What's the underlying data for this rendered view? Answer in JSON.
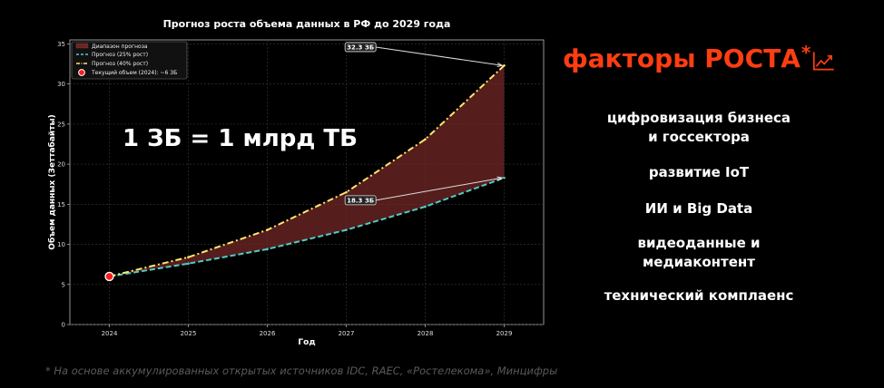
{
  "chart_data": {
    "type": "line",
    "title": "Прогноз роста объема данных в РФ до 2029 года",
    "xlabel": "Год",
    "ylabel": "Объем данных (Зеттабайты)",
    "x": [
      2024,
      2025,
      2026,
      2027,
      2028,
      2029
    ],
    "xlim": [
      2023.5,
      2029.5
    ],
    "ylim": [
      0,
      35.5
    ],
    "yticks": [
      0,
      5,
      10,
      15,
      20,
      25,
      30,
      35
    ],
    "grid": true,
    "legend_position": "top-left",
    "series": [
      {
        "name": "Прогноз (25% рост)",
        "values": [
          6.0,
          7.6,
          9.4,
          11.8,
          14.7,
          18.3
        ],
        "color": "#4ecdc4",
        "style": "dashed"
      },
      {
        "name": "Прогноз (40% рост)",
        "values": [
          6.0,
          8.4,
          11.8,
          16.5,
          23.1,
          32.3
        ],
        "color": "#ffe66d",
        "style": "dashdot"
      }
    ],
    "band": {
      "name": "Диапазон прогноза",
      "color": "#7a2a2a"
    },
    "current_point": {
      "name": "Текущий объем (2024): ~6 ЗБ",
      "x": 2024,
      "y": 6.0,
      "color": "#ff1a1a"
    },
    "annotations": [
      {
        "text": "32.3 ЗБ",
        "x": 2029,
        "y": 32.3,
        "text_x": 2027.18,
        "text_y": 34.6
      },
      {
        "text": "18.3 ЗБ",
        "x": 2029,
        "y": 18.3,
        "text_x": 2027.18,
        "text_y": 15.5
      }
    ]
  },
  "big_note": "1 ЗБ = 1 млрд ТБ",
  "factors": {
    "title": "факторы РОСТА",
    "title_asterisk": "*",
    "icon": "line-chart-icon",
    "accent_color": "#ff3d12",
    "items": [
      {
        "lines": [
          "цифровизация бизнеса",
          "и госсектора"
        ]
      },
      {
        "lines": [
          "развитие IoT"
        ]
      },
      {
        "lines": [
          "ИИ и Big Data"
        ]
      },
      {
        "lines": [
          "видеоданные и",
          "медиаконтент"
        ]
      },
      {
        "lines": [
          "технический комплаенс"
        ]
      }
    ]
  },
  "footnote": "* На основе аккумулированных открытых источников IDC, RAEC, «Ростелекома», Минцифры"
}
